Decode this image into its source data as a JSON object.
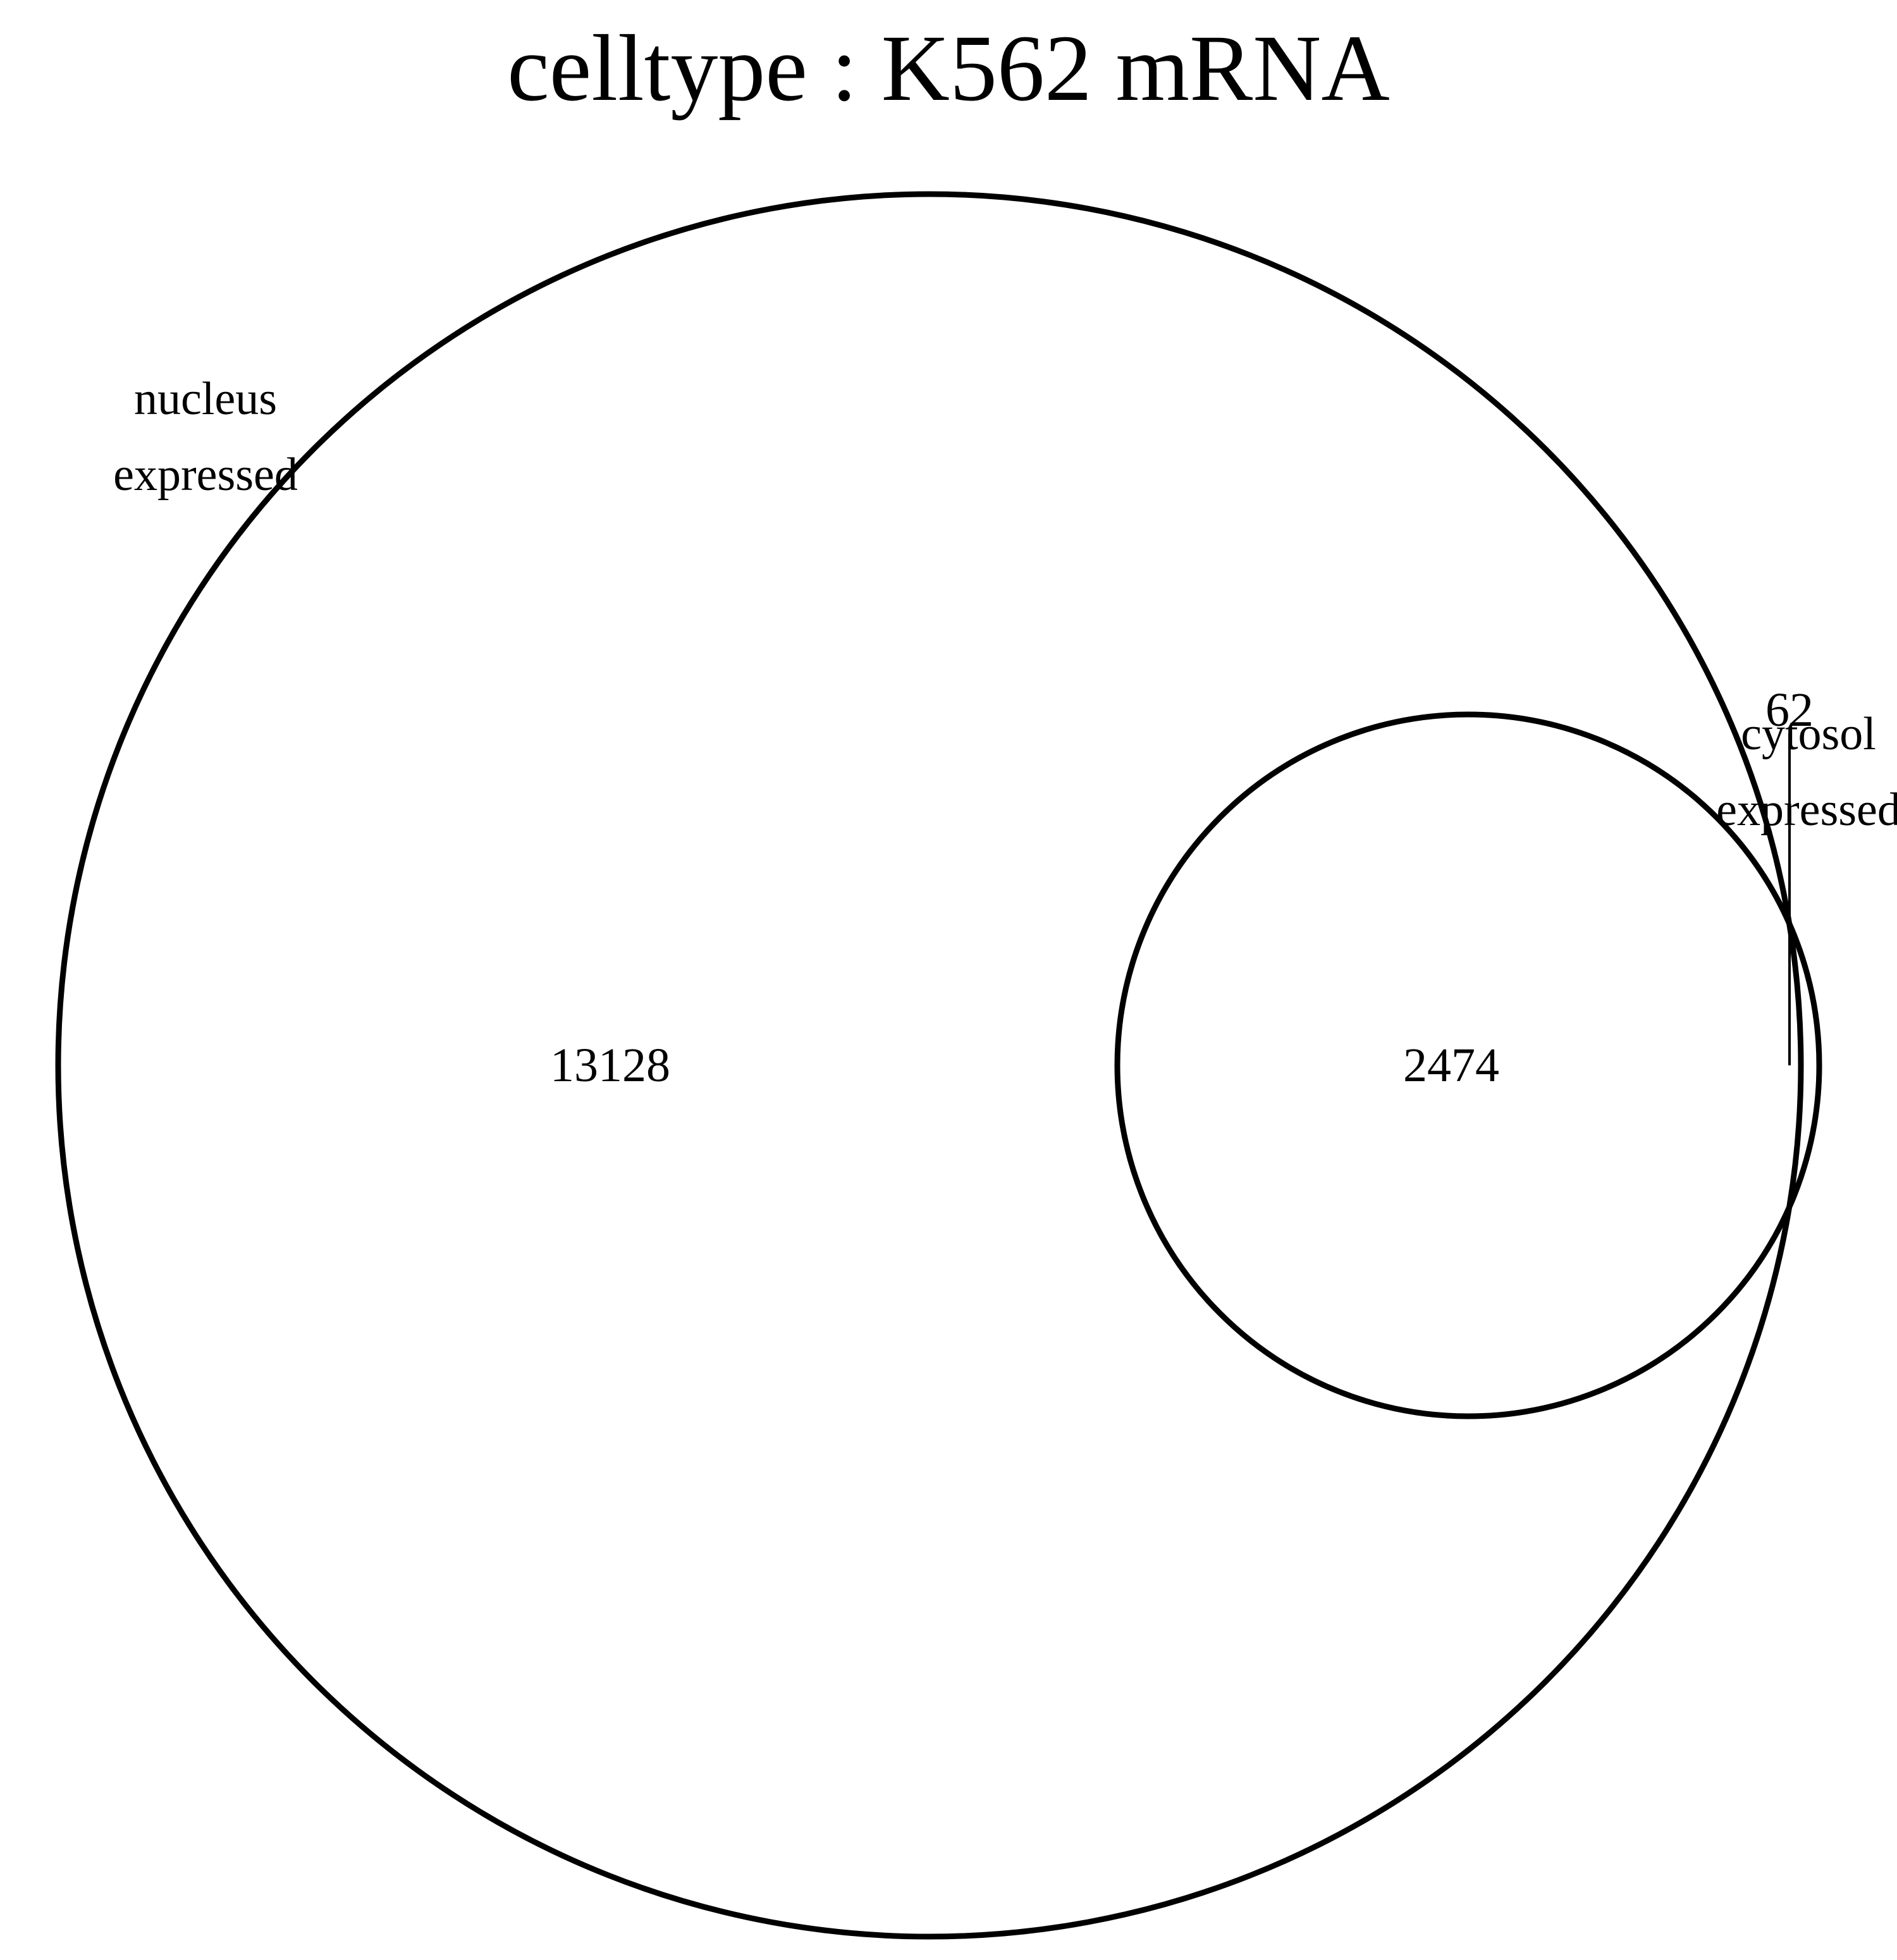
{
  "title": "celltype :  K562  mRNA",
  "sets": {
    "nucleus": {
      "label_line1": "nucleus",
      "label_line2": "expressed"
    },
    "cytosol": {
      "label_line1": "cytosol",
      "label_line2": "expressed"
    }
  },
  "regions": {
    "nucleus_only": "13128",
    "intersection": "2474",
    "cytosol_only": "62"
  },
  "colors": {
    "outline": "#000000",
    "background": "#ffffff"
  }
}
